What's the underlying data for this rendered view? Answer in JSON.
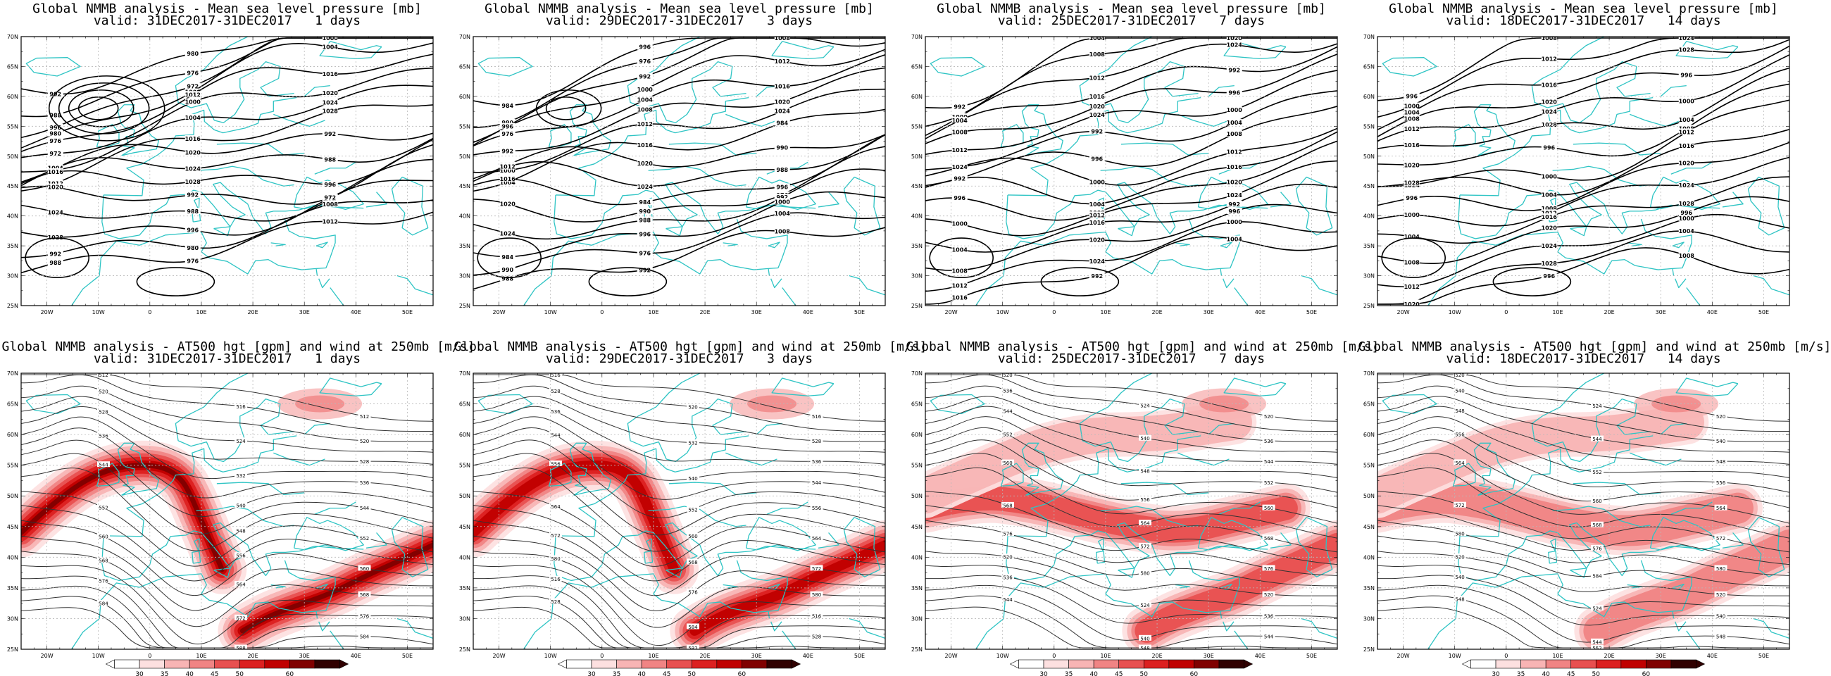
{
  "panels_top": [
    {
      "title": "Global NMMB analysis - Mean sea level pressure [mb]",
      "valid": "valid: 31DEC2017-31DEC2017   1 days"
    },
    {
      "title": "Global NMMB analysis - Mean sea level pressure [mb]",
      "valid": "valid: 29DEC2017-31DEC2017   3 days"
    },
    {
      "title": "Global NMMB analysis - Mean sea level pressure [mb]",
      "valid": "valid: 25DEC2017-31DEC2017   7 days"
    },
    {
      "title": "Global NMMB analysis - Mean sea level pressure [mb]",
      "valid": "valid: 18DEC2017-31DEC2017   14 days"
    }
  ],
  "panels_bottom": [
    {
      "title": "Global NMMB analysis - AT500 hgt [gpm] and wind at 250mb [m/s]",
      "valid": "valid: 31DEC2017-31DEC2017   1 days"
    },
    {
      "title": "Global NMMB analysis - AT500 hgt [gpm] and wind at 250mb [m/s]",
      "valid": "valid: 29DEC2017-31DEC2017   3 days"
    },
    {
      "title": "Global NMMB analysis - AT500 hgt [gpm] and wind at 250mb [m/s]",
      "valid": "valid: 25DEC2017-31DEC2017   7 days"
    },
    {
      "title": "Global NMMB analysis - AT500 hgt [gpm] and wind at 250mb [m/s]",
      "valid": "valid: 18DEC2017-31DEC2017   14 days"
    }
  ],
  "lat_labels": [
    "70N",
    "65N",
    "60N",
    "55N",
    "50N",
    "45N",
    "40N",
    "35N",
    "30N",
    "25N"
  ],
  "lon_labels": [
    "20W",
    "10W",
    "0",
    "10E",
    "20E",
    "30E",
    "40E",
    "50E"
  ],
  "colorbar": {
    "ticks": [
      "30",
      "35",
      "40",
      "45",
      "50",
      "60"
    ],
    "colors": [
      "#ffffff",
      "#fde0e0",
      "#f8b4b4",
      "#f08484",
      "#e85050",
      "#dc2020",
      "#c00000",
      "#800000",
      "#300000"
    ]
  },
  "colors": {
    "coast": "#2ec4c4",
    "isobar": "#000000",
    "grid": "#b8b8b8"
  },
  "mslp_labels": [
    [
      "992",
      "988",
      "996",
      "980",
      "976",
      "972",
      "1008",
      "1012",
      "1000",
      "1004",
      "1016",
      "1020",
      "1024",
      "1028"
    ],
    [
      "984",
      "990",
      "988",
      "996",
      "976",
      "992",
      "1000",
      "1004",
      "1008",
      "1012",
      "1016",
      "1020",
      "1024"
    ],
    [
      "992",
      "996",
      "1000",
      "1004",
      "1008",
      "1012",
      "1016",
      "1020",
      "1024"
    ],
    [
      "996",
      "1000",
      "1004",
      "1008",
      "1012",
      "1016",
      "1020",
      "1024",
      "1028"
    ]
  ],
  "z500_labels": [
    [
      "512",
      "516",
      "520",
      "524",
      "528",
      "532",
      "536",
      "540",
      "544",
      "548",
      "552",
      "556",
      "560",
      "564",
      "568",
      "572",
      "576",
      "580",
      "584",
      "588"
    ],
    [
      "516",
      "520",
      "528",
      "532",
      "536",
      "540",
      "544",
      "552",
      "556",
      "560",
      "564",
      "568",
      "572",
      "576",
      "580",
      "584"
    ],
    [
      "520",
      "524",
      "536",
      "540",
      "544",
      "548",
      "552",
      "556",
      "560",
      "564",
      "568",
      "572",
      "576",
      "580"
    ],
    [
      "520",
      "524",
      "540",
      "544",
      "548",
      "552",
      "556",
      "560",
      "564",
      "568",
      "572",
      "576",
      "580",
      "584"
    ]
  ]
}
